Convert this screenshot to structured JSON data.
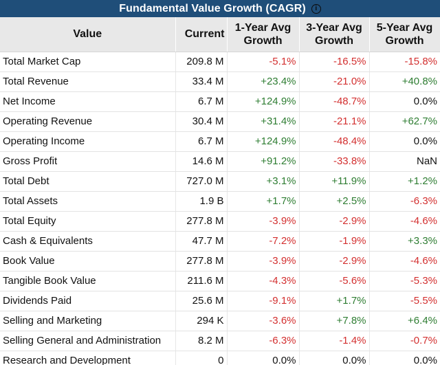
{
  "title": "Fundamental Value Growth (CAGR)",
  "info_icon": "info-icon",
  "colors": {
    "header_bg": "#1f4e79",
    "positive": "#2e7d32",
    "negative": "#d32f2f",
    "column_header_bg": "#e8e8e8"
  },
  "columns": [
    "Value",
    "Current",
    "1-Year Avg Growth",
    "3-Year Avg Growth",
    "5-Year Avg Growth"
  ],
  "rows": [
    [
      "Total Market Cap",
      "209.8 M",
      "-5.1%",
      "-16.5%",
      "-15.8%"
    ],
    [
      "Total Revenue",
      "33.4 M",
      "+23.4%",
      "-21.0%",
      "+40.8%"
    ],
    [
      "Net Income",
      "6.7 M",
      "+124.9%",
      "-48.7%",
      "0.0%"
    ],
    [
      "Operating Revenue",
      "30.4 M",
      "+31.4%",
      "-21.1%",
      "+62.7%"
    ],
    [
      "Operating Income",
      "6.7 M",
      "+124.9%",
      "-48.4%",
      "0.0%"
    ],
    [
      "Gross Profit",
      "14.6 M",
      "+91.2%",
      "-33.8%",
      "NaN"
    ],
    [
      "Total Debt",
      "727.0 M",
      "+3.1%",
      "+11.9%",
      "+1.2%"
    ],
    [
      "Total Assets",
      "1.9 B",
      "+1.7%",
      "+2.5%",
      "-6.3%"
    ],
    [
      "Total Equity",
      "277.8 M",
      "-3.9%",
      "-2.9%",
      "-4.6%"
    ],
    [
      "Cash & Equivalents",
      "47.7 M",
      "-7.2%",
      "-1.9%",
      "+3.3%"
    ],
    [
      "Book Value",
      "277.8 M",
      "-3.9%",
      "-2.9%",
      "-4.6%"
    ],
    [
      "Tangible Book Value",
      "211.6 M",
      "-4.3%",
      "-5.6%",
      "-5.3%"
    ],
    [
      "Dividends Paid",
      "25.6 M",
      "-9.1%",
      "+1.7%",
      "-5.5%"
    ],
    [
      "Selling and Marketing",
      "294 K",
      "-3.6%",
      "+7.8%",
      "+6.4%"
    ],
    [
      "Selling General and Administration",
      "8.2 M",
      "-6.3%",
      "-1.4%",
      "-0.7%"
    ],
    [
      "Research and Development",
      "0",
      "0.0%",
      "0.0%",
      "0.0%"
    ]
  ]
}
